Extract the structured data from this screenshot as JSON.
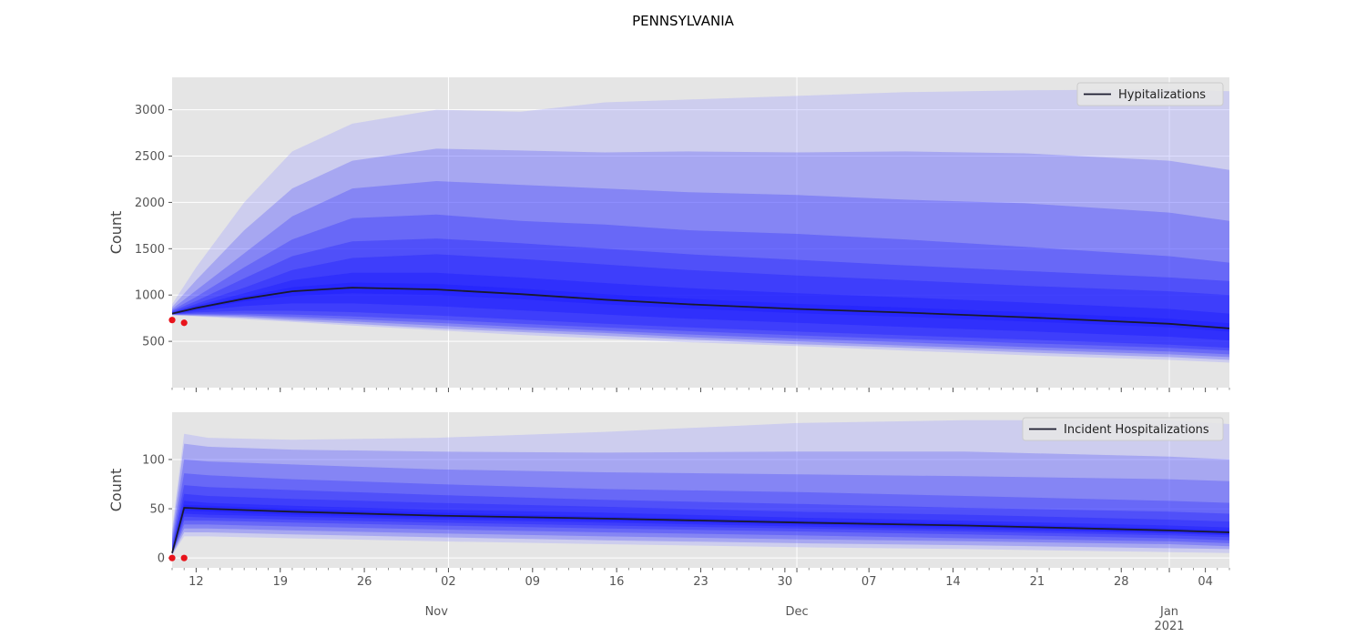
{
  "figure": {
    "title": "PENNSYLVANIA"
  },
  "colors": {
    "plot_background": "#e5e5e5",
    "grid": "#ffffff",
    "band": "#1a1aff",
    "band_outer": "#a0a0ff",
    "median_line": "#1a1a2e",
    "observed_points": "#e8131b",
    "tick_text": "#555555",
    "label_text": "#444444"
  },
  "x_axis": {
    "day_labels": [
      {
        "date": "2020-10-12",
        "label": "12"
      },
      {
        "date": "2020-10-19",
        "label": "19"
      },
      {
        "date": "2020-10-26",
        "label": "26"
      },
      {
        "date": "2020-11-02",
        "label": "02"
      },
      {
        "date": "2020-11-09",
        "label": "09"
      },
      {
        "date": "2020-11-16",
        "label": "16"
      },
      {
        "date": "2020-11-23",
        "label": "23"
      },
      {
        "date": "2020-11-30",
        "label": "30"
      },
      {
        "date": "2020-12-07",
        "label": "07"
      },
      {
        "date": "2020-12-14",
        "label": "14"
      },
      {
        "date": "2020-12-21",
        "label": "21"
      },
      {
        "date": "2020-12-28",
        "label": "28"
      },
      {
        "date": "2021-01-04",
        "label": "04"
      }
    ],
    "month_labels": [
      {
        "date": "2020-11-01",
        "label": "Nov"
      },
      {
        "date": "2020-12-01",
        "label": "Dec"
      },
      {
        "date": "2021-01-01",
        "label": "Jan",
        "sublabel": "2021"
      }
    ],
    "xlim": [
      "2020-10-10",
      "2021-01-06"
    ]
  },
  "chart_data": [
    {
      "type": "area",
      "ylabel": "Count",
      "ylim": [
        0,
        3350
      ],
      "yticks": [
        500,
        1000,
        1500,
        2000,
        2500,
        3000
      ],
      "grid": true,
      "legend": {
        "label": "Hypitalizations",
        "placement": "top-right"
      },
      "dates": [
        "2020-10-10",
        "2020-10-12",
        "2020-10-16",
        "2020-10-20",
        "2020-10-25",
        "2020-11-01",
        "2020-11-08",
        "2020-11-15",
        "2020-11-22",
        "2020-12-01",
        "2020-12-10",
        "2020-12-20",
        "2021-01-01",
        "2021-01-06"
      ],
      "median": [
        800,
        860,
        960,
        1040,
        1080,
        1060,
        1010,
        950,
        900,
        850,
        810,
        760,
        690,
        640
      ],
      "bands": [
        {
          "lower": [
            780,
            770,
            740,
            710,
            670,
            620,
            570,
            530,
            490,
            450,
            400,
            350,
            300,
            270
          ],
          "upper": [
            900,
            1300,
            2000,
            2550,
            2850,
            3000,
            2980,
            3080,
            3110,
            3150,
            3190,
            3210,
            3220,
            3200
          ]
        },
        {
          "lower": [
            785,
            775,
            755,
            725,
            690,
            640,
            600,
            560,
            520,
            470,
            430,
            380,
            330,
            300
          ],
          "upper": [
            870,
            1160,
            1700,
            2150,
            2450,
            2580,
            2560,
            2540,
            2550,
            2540,
            2550,
            2530,
            2450,
            2350
          ]
        },
        {
          "lower": [
            788,
            782,
            770,
            745,
            715,
            670,
            625,
            590,
            545,
            500,
            455,
            410,
            360,
            330
          ],
          "upper": [
            850,
            1050,
            1450,
            1850,
            2150,
            2230,
            2190,
            2150,
            2110,
            2080,
            2030,
            1990,
            1890,
            1800
          ]
        },
        {
          "lower": [
            790,
            790,
            785,
            765,
            740,
            700,
            655,
            615,
            575,
            530,
            490,
            440,
            390,
            360
          ],
          "upper": [
            835,
            980,
            1300,
            1600,
            1830,
            1870,
            1800,
            1760,
            1700,
            1660,
            1600,
            1520,
            1420,
            1350
          ]
        },
        {
          "lower": [
            792,
            800,
            800,
            790,
            770,
            735,
            690,
            650,
            610,
            565,
            525,
            480,
            430,
            400
          ],
          "upper": [
            825,
            935,
            1180,
            1420,
            1580,
            1610,
            1560,
            1500,
            1440,
            1380,
            1320,
            1260,
            1190,
            1150
          ]
        },
        {
          "lower": [
            794,
            812,
            830,
            830,
            815,
            780,
            735,
            690,
            650,
            605,
            565,
            520,
            465,
            430
          ],
          "upper": [
            815,
            905,
            1080,
            1270,
            1400,
            1440,
            1390,
            1330,
            1270,
            1210,
            1160,
            1100,
            1040,
            1000
          ]
        },
        {
          "lower": [
            796,
            830,
            880,
            910,
            910,
            880,
            835,
            790,
            745,
            700,
            655,
            610,
            550,
            510
          ],
          "upper": [
            808,
            885,
            1020,
            1160,
            1240,
            1240,
            1190,
            1130,
            1075,
            1020,
            975,
            920,
            850,
            800
          ]
        },
        {
          "lower": [
            798,
            848,
            930,
            990,
            1020,
            1000,
            955,
            900,
            855,
            805,
            765,
            715,
            650,
            605
          ],
          "upper": [
            803,
            870,
            985,
            1085,
            1135,
            1120,
            1070,
            1010,
            960,
            905,
            865,
            815,
            745,
            695
          ]
        }
      ],
      "observed": [
        {
          "date": "2020-10-10",
          "value": 730
        },
        {
          "date": "2020-10-11",
          "value": 700
        }
      ]
    },
    {
      "type": "area",
      "ylabel": "Count",
      "ylim": [
        -10,
        148
      ],
      "yticks": [
        0,
        50,
        100
      ],
      "grid": true,
      "legend": {
        "label": "Incident Hospitalizations",
        "placement": "top-right"
      },
      "dates": [
        "2020-10-10",
        "2020-10-11",
        "2020-10-13",
        "2020-10-20",
        "2020-11-01",
        "2020-11-15",
        "2020-12-01",
        "2020-12-15",
        "2021-01-01",
        "2021-01-06"
      ],
      "median": [
        5,
        51,
        50,
        47,
        43,
        40,
        36,
        33,
        28,
        26
      ],
      "bands": [
        {
          "lower": [
            3,
            22,
            22,
            20,
            17,
            14,
            11,
            9,
            6,
            5
          ],
          "upper": [
            30,
            126,
            122,
            120,
            122,
            128,
            137,
            140,
            140,
            136
          ]
        },
        {
          "lower": [
            3,
            26,
            26,
            24,
            21,
            18,
            15,
            13,
            10,
            9
          ],
          "upper": [
            25,
            116,
            113,
            110,
            108,
            107,
            108,
            108,
            103,
            100
          ]
        },
        {
          "lower": [
            4,
            30,
            30,
            28,
            25,
            22,
            19,
            17,
            14,
            12
          ],
          "upper": [
            20,
            100,
            98,
            95,
            90,
            87,
            85,
            83,
            80,
            78
          ]
        },
        {
          "lower": [
            4,
            34,
            34,
            32,
            29,
            26,
            23,
            20,
            17,
            15
          ],
          "upper": [
            16,
            86,
            84,
            80,
            75,
            70,
            67,
            63,
            58,
            56
          ]
        },
        {
          "lower": [
            4,
            38,
            38,
            36,
            33,
            30,
            27,
            24,
            20,
            18
          ],
          "upper": [
            12,
            74,
            72,
            69,
            64,
            59,
            55,
            51,
            47,
            45
          ]
        },
        {
          "lower": [
            5,
            42,
            41,
            39,
            36,
            33,
            30,
            27,
            23,
            21
          ],
          "upper": [
            10,
            65,
            63,
            60,
            56,
            52,
            47,
            44,
            39,
            37
          ]
        },
        {
          "lower": [
            5,
            45,
            44,
            42,
            39,
            36,
            32,
            29,
            25,
            23
          ],
          "upper": [
            8,
            58,
            56,
            53,
            49,
            46,
            41,
            38,
            33,
            31
          ]
        },
        {
          "lower": [
            5,
            48,
            47,
            44,
            41,
            38,
            34,
            31,
            26,
            24
          ],
          "upper": [
            6,
            54,
            53,
            50,
            46,
            42,
            38,
            35,
            30,
            28
          ]
        }
      ],
      "observed": [
        {
          "date": "2020-10-10",
          "value": 0
        },
        {
          "date": "2020-10-11",
          "value": 0
        }
      ]
    }
  ]
}
